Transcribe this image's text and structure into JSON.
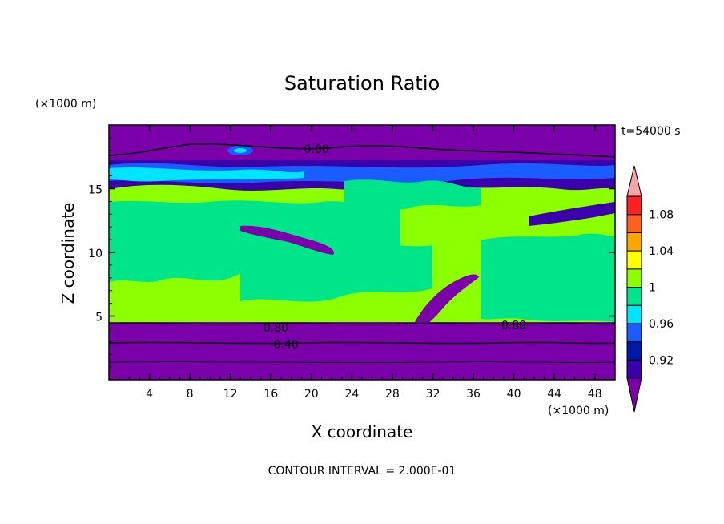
{
  "chart_data": {
    "type": "heatmap",
    "title": "Saturation Ratio",
    "xlabel": "X coordinate",
    "ylabel": "Z coordinate",
    "x_unit": "(×1000 m)",
    "y_unit": "(×1000 m)",
    "time_label": "t=54000 s",
    "footer": "CONTOUR INTERVAL = 2.000E-01",
    "xlim": [
      0,
      50
    ],
    "ylim": [
      0,
      20
    ],
    "xticks": [
      4,
      8,
      12,
      16,
      20,
      24,
      28,
      32,
      36,
      40,
      44,
      48
    ],
    "yticks": [
      5,
      10,
      15
    ],
    "colorbar": {
      "levels": [
        0.92,
        0.94,
        0.96,
        0.98,
        1.0,
        1.02,
        1.04,
        1.06,
        1.08
      ],
      "tick_labels": [
        "0.92",
        "0.96",
        "1",
        "1.04",
        "1.08"
      ],
      "colors": [
        "#7a00aa",
        "#3a00aa",
        "#0018a8",
        "#1a5cff",
        "#00e5ff",
        "#00e58a",
        "#8cff00",
        "#ffff00",
        "#ffa500",
        "#ff6020",
        "#ff2020",
        "#f4a6a6"
      ]
    },
    "contour_labels": [
      {
        "text": "0.80",
        "x": 20.5,
        "y": 18.1
      },
      {
        "text": "0.80",
        "x": 16.5,
        "y": 4.1
      },
      {
        "text": "0.80",
        "x": 40.0,
        "y": 4.3
      },
      {
        "text": "0.40",
        "x": 17.5,
        "y": 2.8
      }
    ]
  }
}
